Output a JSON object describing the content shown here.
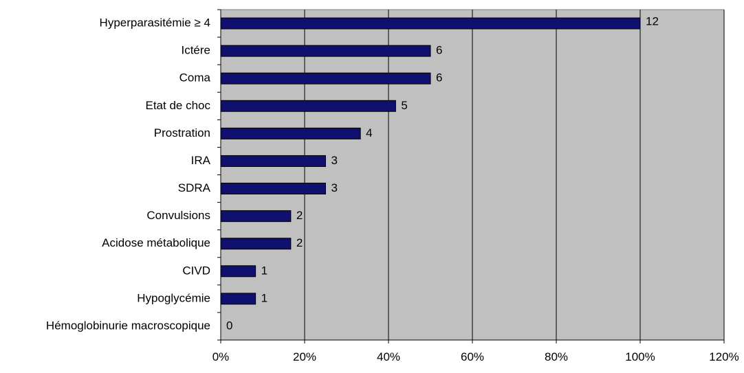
{
  "chart_data": {
    "type": "bar",
    "orientation": "horizontal",
    "categories": [
      "Hyperparasitémie ≥ 4",
      "Ictére",
      "Coma",
      "Etat de choc",
      "Prostration",
      "IRA",
      "SDRA",
      "Convulsions",
      "Acidose métabolique",
      "CIVD",
      "Hypoglycémie",
      "Hémoglobinurie macroscopique"
    ],
    "values": [
      100,
      50,
      50,
      41.7,
      33.3,
      25,
      25,
      16.7,
      16.7,
      8.3,
      8.3,
      0
    ],
    "data_labels": [
      "12",
      "6",
      "6",
      "5",
      "4",
      "3",
      "3",
      "2",
      "2",
      "1",
      "1",
      "0"
    ],
    "xlim": [
      0,
      120
    ],
    "x_ticks": [
      0,
      20,
      40,
      60,
      80,
      100,
      120
    ],
    "x_tick_labels": [
      "0%",
      "20%",
      "40%",
      "60%",
      "80%",
      "100%",
      "120%"
    ],
    "grid": "vertical",
    "legend": "none",
    "colors": {
      "bar_fill": "#10106e",
      "bar_stroke": "#000000",
      "plot_background": "#c0c0c0",
      "gridline": "#000000"
    }
  }
}
